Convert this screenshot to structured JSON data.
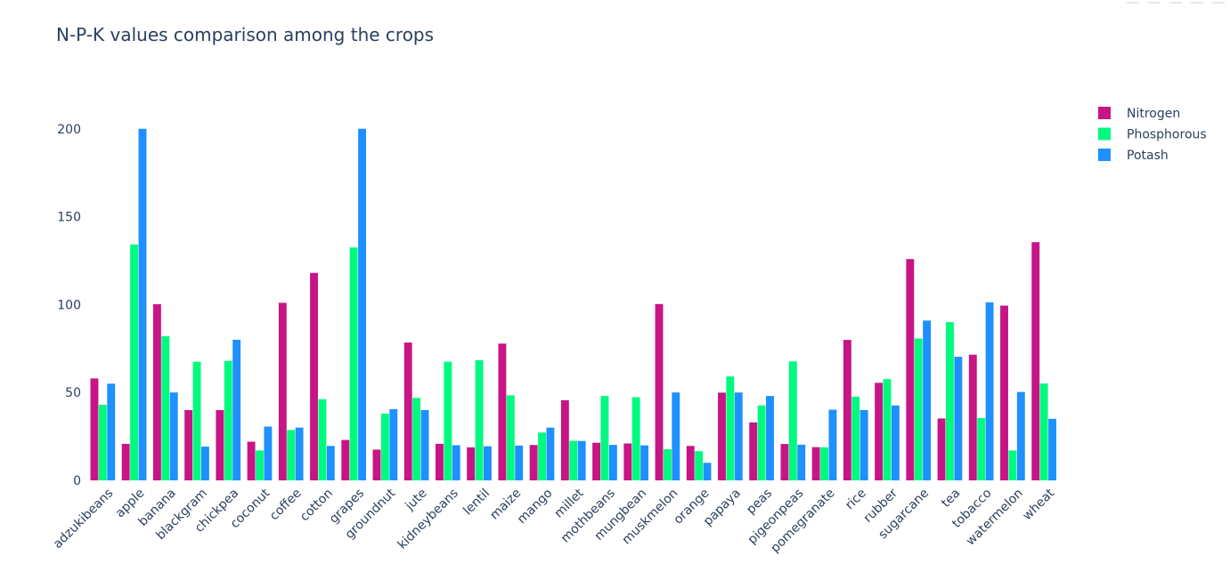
{
  "chart_data": {
    "type": "bar",
    "title": "N-P-K values comparison among the crops",
    "xlabel": "",
    "ylabel": "",
    "ylim": [
      0,
      210
    ],
    "yticks": [
      0,
      50,
      100,
      150,
      200
    ],
    "grid": false,
    "legend_position": "top-right",
    "categories": [
      "adzukibeans",
      "apple",
      "banana",
      "blackgram",
      "chickpea",
      "coconut",
      "coffee",
      "cotton",
      "grapes",
      "groundnut",
      "jute",
      "kidneybeans",
      "lentil",
      "maize",
      "mango",
      "millet",
      "mothbeans",
      "mungbean",
      "muskmelon",
      "orange",
      "papaya",
      "peas",
      "pigeonpeas",
      "pomegranate",
      "rice",
      "rubber",
      "sugarcane",
      "tea",
      "tobacco",
      "watermelon",
      "wheat"
    ],
    "series": [
      {
        "name": "Nitrogen",
        "color": "#c71585",
        "values": [
          58,
          20.8,
          100.2,
          40,
          40,
          22,
          101,
          118,
          23,
          17.5,
          78.4,
          20.8,
          18.8,
          77.8,
          20.1,
          45.6,
          21.4,
          21,
          100.3,
          19.6,
          49.9,
          33,
          20.7,
          18.9,
          79.9,
          55.5,
          125.9,
          35.2,
          71.5,
          99.4,
          135.5
        ]
      },
      {
        "name": "Phosphorous",
        "color": "#00fa7f",
        "values": [
          43,
          134.2,
          82,
          67.5,
          68,
          17,
          28.7,
          46.2,
          132.5,
          38,
          46.9,
          67.5,
          68.4,
          48.4,
          27.2,
          22.5,
          48,
          47.3,
          17.7,
          16.6,
          59.1,
          42.6,
          67.7,
          18.8,
          47.6,
          57.6,
          80.7,
          90,
          35.5,
          17,
          55.1
        ]
      },
      {
        "name": "Potash",
        "color": "#1e90ff",
        "values": [
          55,
          200,
          50,
          19.2,
          80,
          30.6,
          30,
          19.6,
          200,
          40.5,
          40,
          20,
          19.4,
          19.8,
          30,
          22.4,
          20.2,
          19.9,
          50,
          10,
          50,
          48,
          20.3,
          40.2,
          40,
          42.6,
          90.9,
          70.3,
          101.3,
          50.3,
          35
        ]
      }
    ]
  }
}
